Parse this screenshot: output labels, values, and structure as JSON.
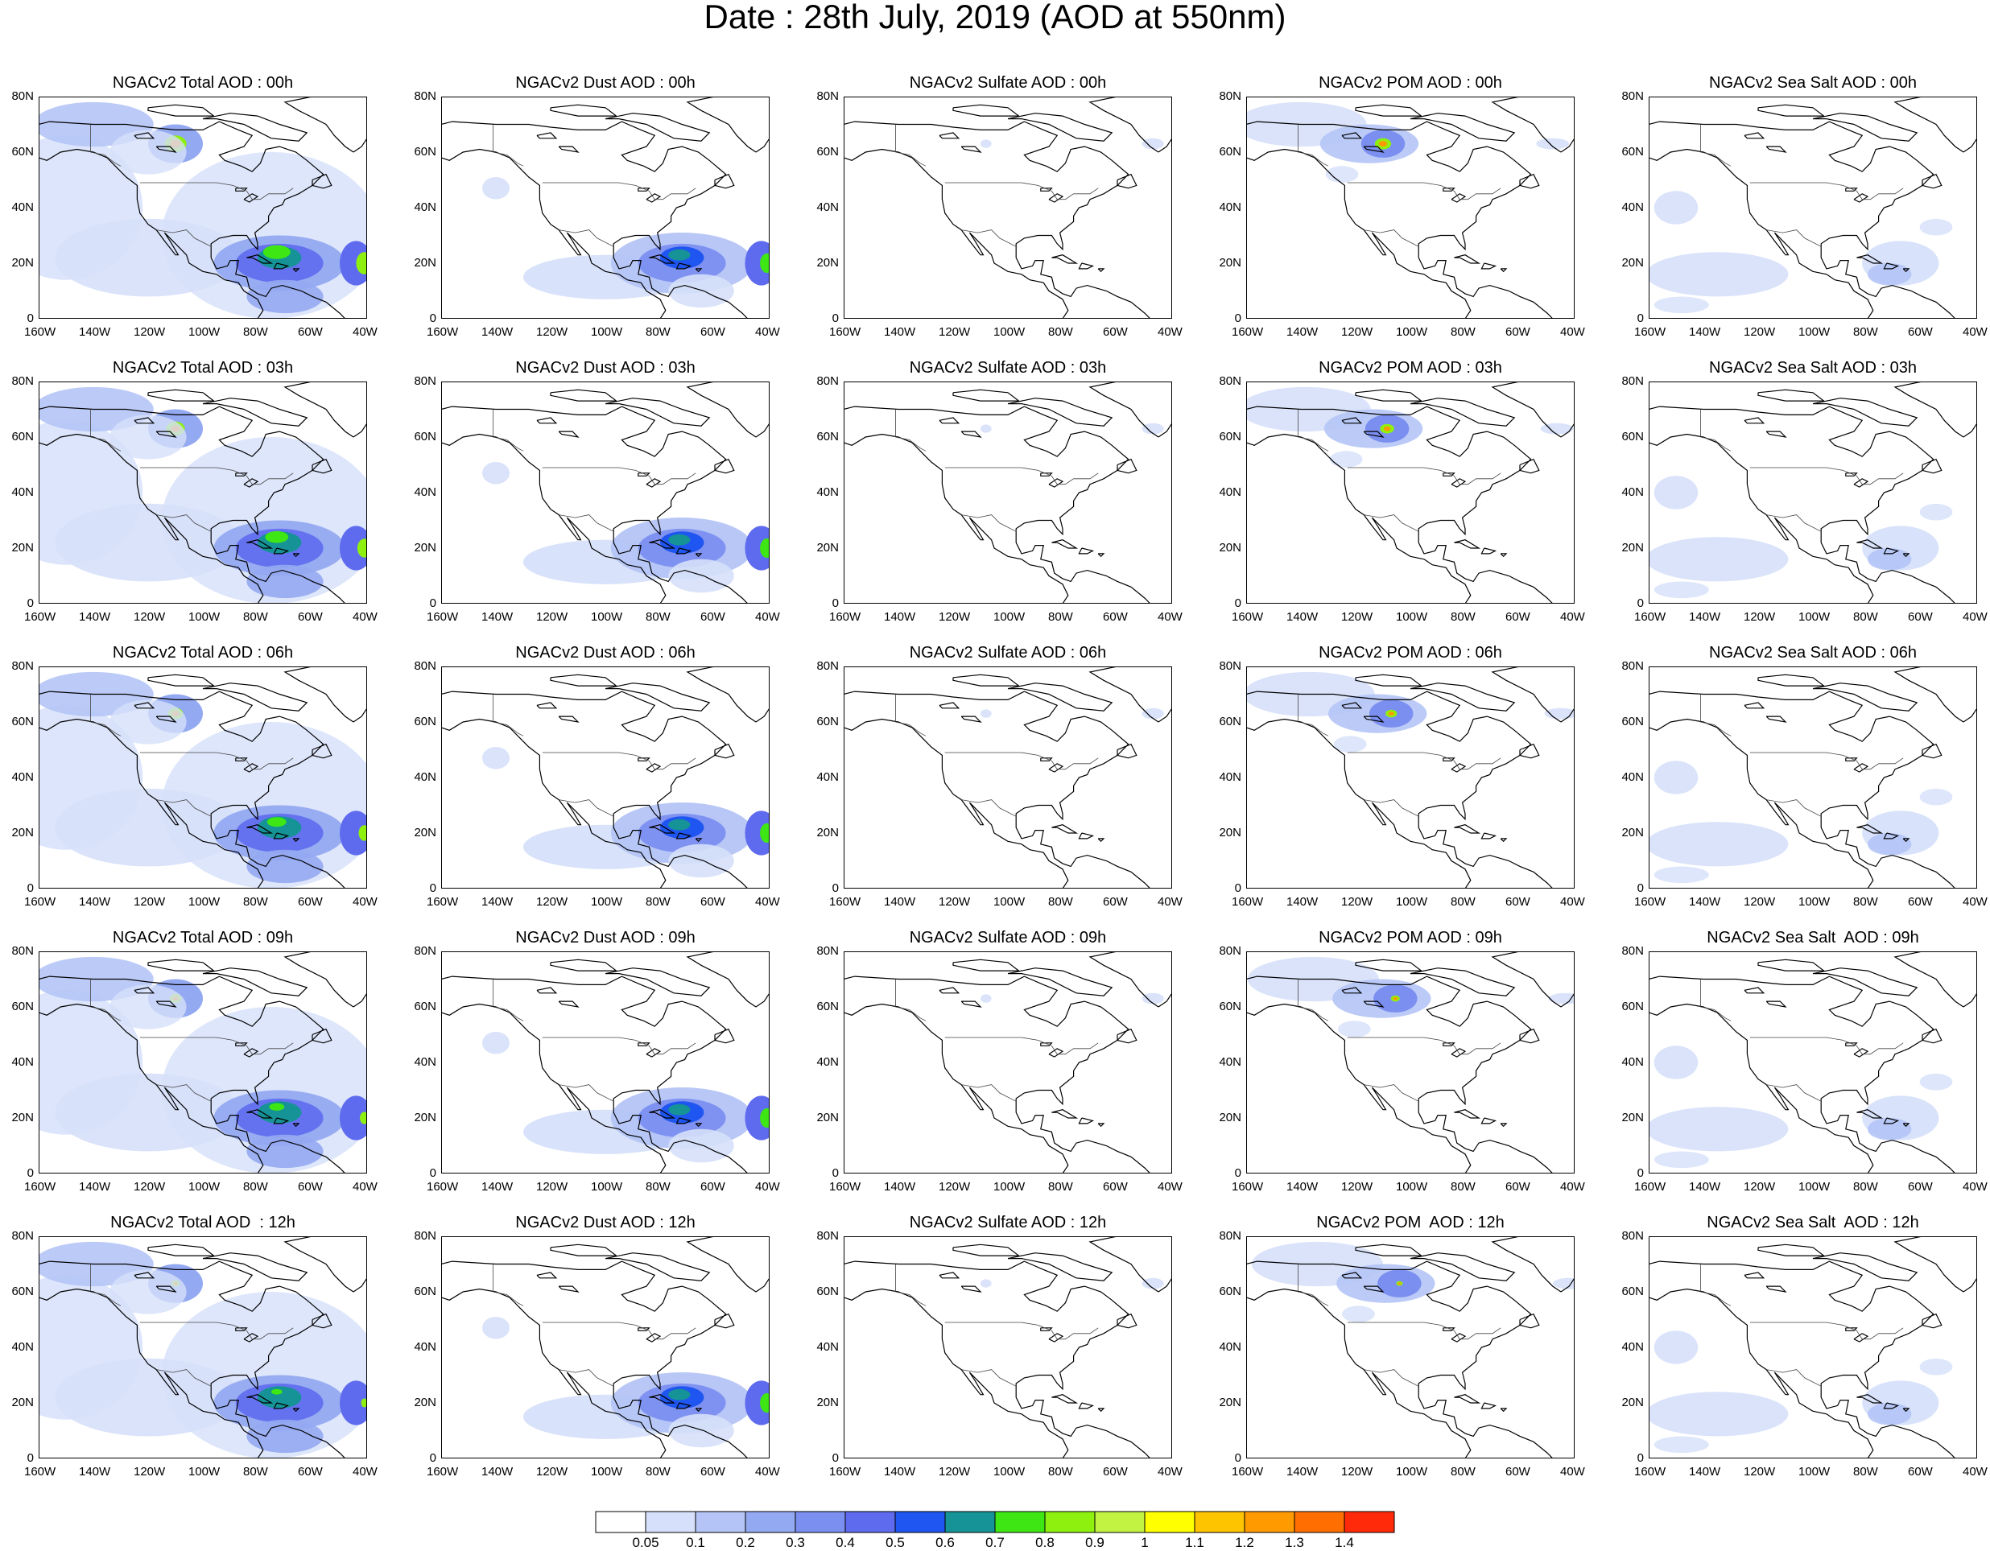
{
  "title": "Date : 28th July, 2019 (AOD at 550nm)",
  "y_ticks": [
    "80N",
    "60N",
    "40N",
    "20N",
    "0"
  ],
  "x_ticks": [
    "160W",
    "140W",
    "120W",
    "100W",
    "80W",
    "60W",
    "40W"
  ],
  "panels": [
    [
      "NGACv2 Total AOD : 00h",
      "NGACv2 Dust AOD : 00h",
      "NGACv2 Sulfate AOD : 00h",
      "NGACv2 POM AOD : 00h",
      "NGACv2 Sea Salt AOD : 00h"
    ],
    [
      "NGACv2 Total AOD : 03h",
      "NGACv2 Dust AOD : 03h",
      "NGACv2 Sulfate AOD : 03h",
      "NGACv2 POM AOD : 03h",
      "NGACv2 Sea Salt AOD : 03h"
    ],
    [
      "NGACv2 Total AOD : 06h",
      "NGACv2 Dust AOD : 06h",
      "NGACv2 Sulfate AOD : 06h",
      "NGACv2 POM AOD : 06h",
      "NGACv2 Sea Salt AOD : 06h"
    ],
    [
      "NGACv2 Total AOD : 09h",
      "NGACv2 Dust AOD : 09h",
      "NGACv2 Sulfate AOD : 09h",
      "NGACv2 POM AOD : 09h",
      "NGACv2 Sea Salt  AOD : 09h"
    ],
    [
      "NGACv2 Total AOD  : 12h",
      "NGACv2 Dust AOD : 12h",
      "NGACv2 Sulfate AOD : 12h",
      "NGACv2 POM  AOD : 12h",
      "NGACv2 Sea Salt  AOD : 12h"
    ]
  ],
  "colorbar": {
    "colors": [
      "#ffffff",
      "#d6e0fa",
      "#b4c4f6",
      "#93a9f1",
      "#7b8ff0",
      "#5f6bee",
      "#1f55f0",
      "#159396",
      "#3ee614",
      "#8ef00f",
      "#c2f242",
      "#ffff00",
      "#ffc400",
      "#ff9a00",
      "#ff6e00",
      "#ff2a0a"
    ],
    "labels": [
      "0.05",
      "0.1",
      "0.2",
      "0.3",
      "0.4",
      "0.5",
      "0.6",
      "0.7",
      "0.8",
      "0.9",
      "1",
      "1.1",
      "1.2",
      "1.3",
      "1.4"
    ]
  }
}
